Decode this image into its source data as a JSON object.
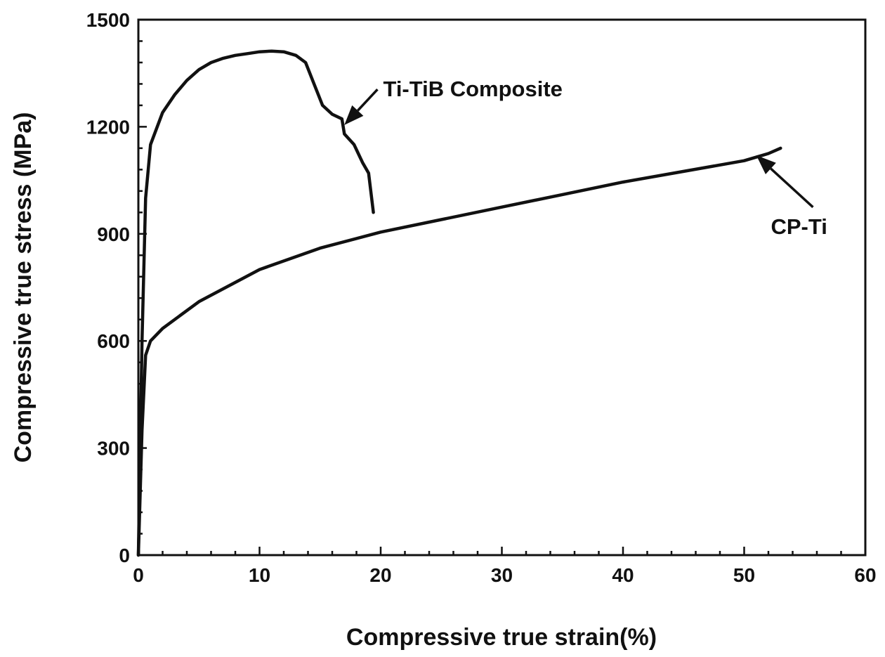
{
  "chart_data": {
    "type": "line",
    "xlabel": "Compressive true strain(%)",
    "ylabel": "Compressive true stress (MPa)",
    "xlim": [
      0,
      60
    ],
    "ylim": [
      0,
      1500
    ],
    "xticks": [
      0,
      10,
      20,
      30,
      40,
      50,
      60
    ],
    "yticks": [
      0,
      300,
      600,
      900,
      1200,
      1500
    ],
    "grid": false,
    "legend": "none",
    "series": [
      {
        "name": "Ti-TiB Composite",
        "points": [
          [
            0,
            0
          ],
          [
            0.3,
            600
          ],
          [
            0.6,
            1000
          ],
          [
            1.0,
            1150
          ],
          [
            2.0,
            1240
          ],
          [
            3.0,
            1290
          ],
          [
            4.0,
            1330
          ],
          [
            5.0,
            1360
          ],
          [
            6.0,
            1380
          ],
          [
            7.0,
            1392
          ],
          [
            8.0,
            1400
          ],
          [
            9.0,
            1405
          ],
          [
            10.0,
            1410
          ],
          [
            11.0,
            1412
          ],
          [
            12.0,
            1410
          ],
          [
            13.0,
            1400
          ],
          [
            13.8,
            1380
          ],
          [
            14.5,
            1320
          ],
          [
            15.2,
            1260
          ],
          [
            16.0,
            1235
          ],
          [
            16.8,
            1222
          ],
          [
            17.0,
            1180
          ],
          [
            17.8,
            1150
          ],
          [
            18.5,
            1100
          ],
          [
            19.0,
            1070
          ],
          [
            19.4,
            960
          ]
        ]
      },
      {
        "name": "CP-Ti",
        "points": [
          [
            0,
            0
          ],
          [
            0.3,
            350
          ],
          [
            0.6,
            560
          ],
          [
            1.0,
            600
          ],
          [
            2.0,
            635
          ],
          [
            5.0,
            710
          ],
          [
            10.0,
            800
          ],
          [
            15.0,
            860
          ],
          [
            20.0,
            905
          ],
          [
            25.0,
            940
          ],
          [
            30.0,
            975
          ],
          [
            35.0,
            1010
          ],
          [
            40.0,
            1045
          ],
          [
            45.0,
            1075
          ],
          [
            50.0,
            1105
          ],
          [
            52.0,
            1125
          ],
          [
            53.0,
            1140
          ]
        ]
      }
    ],
    "annotations": [
      {
        "text": "Ti-TiB Composite",
        "target": [
          17.0,
          1205
        ],
        "text_at": [
          20.2,
          1285
        ]
      },
      {
        "text": "CP-Ti",
        "target": [
          51.0,
          1120
        ],
        "text_at": [
          52.2,
          900
        ]
      }
    ]
  }
}
